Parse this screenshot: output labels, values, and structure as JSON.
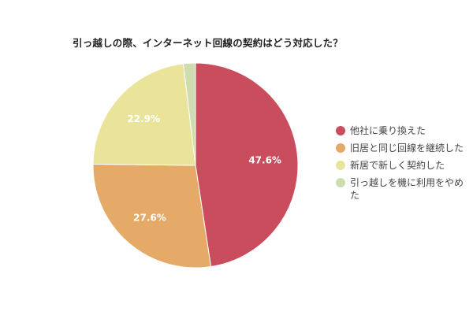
{
  "chart_data": {
    "type": "pie",
    "title": "引っ越しの際、インターネット回線の契約はどう対応した？",
    "categories": [
      "他社に乗り換えた",
      "旧居と同じ回線を継続した",
      "新居で新しく契約した",
      "引っ越しを機に利用をやめた"
    ],
    "values": [
      47.6,
      27.6,
      22.9,
      1.9
    ],
    "labels": [
      "47.6%",
      "27.6%",
      "22.9%",
      ""
    ],
    "colors": [
      "#C94D5D",
      "#E6AA68",
      "#E9E49A",
      "#CEDDB0"
    ],
    "legend_position": "right",
    "start_angle": "top, clockwise"
  },
  "legend": [
    {
      "label": "他社に乗り換えた",
      "color": "#C94D5D"
    },
    {
      "label": "旧居と同じ回線を継続した",
      "color": "#E6AA68"
    },
    {
      "label": "新居で新しく契約した",
      "color": "#E9E49A"
    },
    {
      "label": "引っ越しを機に利用をやめた",
      "color": "#CEDDB0"
    }
  ]
}
